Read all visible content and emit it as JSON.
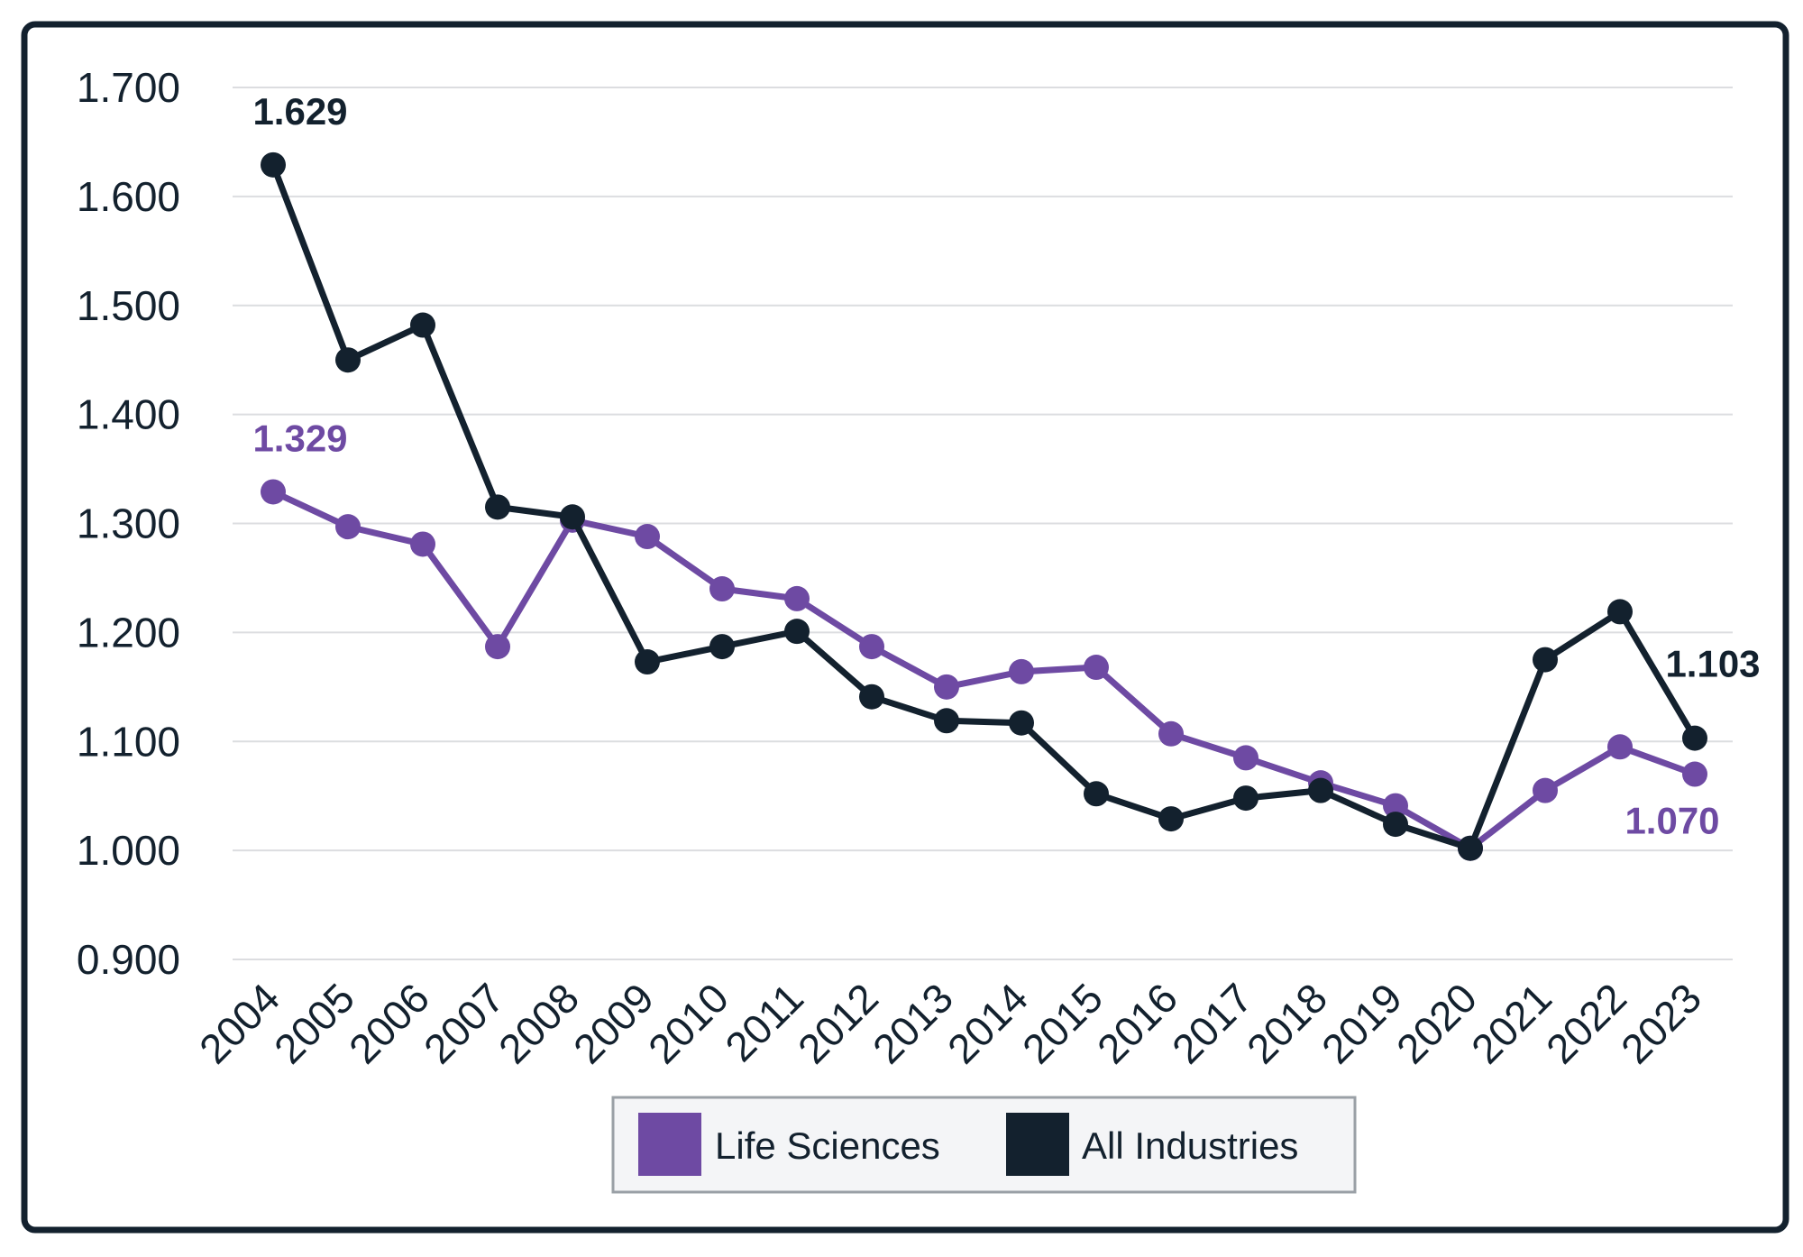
{
  "chart_data": {
    "type": "line",
    "x": [
      "2004",
      "2005",
      "2006",
      "2007",
      "2008",
      "2009",
      "2010",
      "2011",
      "2012",
      "2013",
      "2014",
      "2015",
      "2016",
      "2017",
      "2018",
      "2019",
      "2020",
      "2021",
      "2022",
      "2023"
    ],
    "ylim": [
      0.9,
      1.7
    ],
    "yticks": [
      "1.700",
      "1.600",
      "1.500",
      "1.400",
      "1.300",
      "1.200",
      "1.100",
      "1.000",
      "0.900"
    ],
    "grid": true,
    "legend_position": "bottom-center",
    "series": [
      {
        "name": "Life Sciences",
        "color": "#6e4aa3",
        "values": [
          1.329,
          1.297,
          1.281,
          1.187,
          1.303,
          1.288,
          1.24,
          1.231,
          1.187,
          1.15,
          1.164,
          1.168,
          1.107,
          1.085,
          1.062,
          1.041,
          1.002,
          1.055,
          1.095,
          1.07
        ],
        "labels": [
          {
            "index": 0,
            "text": "1.329",
            "position": "above"
          },
          {
            "index": 19,
            "text": "1.070",
            "position": "below"
          }
        ]
      },
      {
        "name": "All Industries",
        "color": "#13212e",
        "values": [
          1.629,
          1.45,
          1.482,
          1.315,
          1.306,
          1.173,
          1.187,
          1.201,
          1.141,
          1.119,
          1.117,
          1.052,
          1.029,
          1.048,
          1.055,
          1.024,
          1.002,
          1.175,
          1.219,
          1.103
        ],
        "labels": [
          {
            "index": 0,
            "text": "1.629",
            "position": "above"
          },
          {
            "index": 19,
            "text": "1.103",
            "position": "above-right"
          }
        ]
      }
    ]
  }
}
